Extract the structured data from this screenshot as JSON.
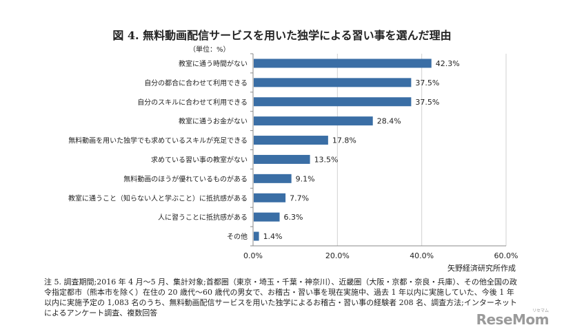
{
  "chart_data": {
    "type": "bar",
    "orientation": "horizontal",
    "title": "図 4.  無料動画配信サービスを用いた独学による習い事を選んだ理由",
    "unit_label": "（単位：%）",
    "categories": [
      "教室に通う時間がない",
      "自分の都合に合わせて利用できる",
      "自分のスキルに合わせて利用できる",
      "教室に通うお金がない",
      "無料動画を用いた独学でも求めているスキルが充足できる",
      "求めている習い事の教室がない",
      "無料動画のほうが優れているものがある",
      "教室に通うこと（知らない人と学ぶこと）に抵抗感がある",
      "人に習うことに抵抗感がある",
      "その他"
    ],
    "values": [
      42.3,
      37.5,
      37.5,
      28.4,
      17.8,
      13.5,
      9.1,
      7.7,
      6.3,
      1.4
    ],
    "value_labels": [
      "42.3%",
      "37.5%",
      "37.5%",
      "28.4%",
      "17.8%",
      "13.5%",
      "9.1%",
      "7.7%",
      "6.3%",
      "1.4%"
    ],
    "xlim": [
      0,
      60
    ],
    "x_ticks": [
      0,
      20,
      40,
      60
    ],
    "x_tick_labels": [
      "0.0%",
      "20.0%",
      "40.0%",
      "60.0%"
    ],
    "grid": true,
    "bar_color": "#3a6ea5"
  },
  "source": "矢野経済研究所作成",
  "note": "注 5.  調査期間;2016 年 4 月～5 月、集計対象;首都圏（東京・埼玉・千葉・神奈川）、近畿圏（大阪・京都・奈良・兵庫）、その他全国の政令指定都市（熊本市を除く）在住の 20 歳代～60 歳代の男女で、お稽古・習い事を現在実施中、過去 1 年以内に実施していた、今後 1 年以内に実施予定の 1,083 名のうち、無料動画配信サービスを用いた独学によるお稽古・習い事の経験者 208 名、調査方法;インターネットによるアンケート調査、複数回答",
  "watermark": "ReseMom",
  "watermark_sub": "リセマム"
}
